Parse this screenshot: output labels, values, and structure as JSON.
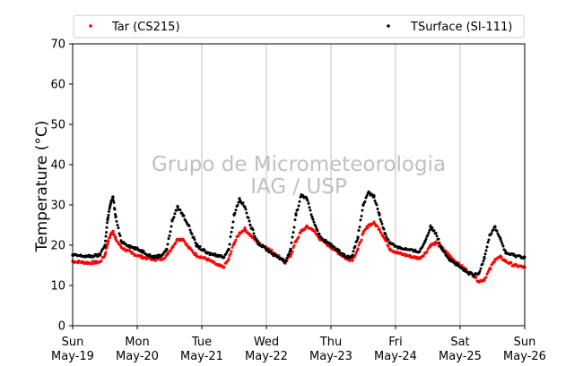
{
  "chart_data": {
    "type": "scatter",
    "ylabel": "Temperature (°C)",
    "ylim": [
      0,
      70
    ],
    "yticks": [
      0,
      10,
      20,
      30,
      40,
      50,
      60,
      70
    ],
    "xlim": [
      "2019-05-19",
      "2019-05-26"
    ],
    "xticks": [
      {
        "day": "Sun",
        "date": "May-19"
      },
      {
        "day": "Mon",
        "date": "May-20"
      },
      {
        "day": "Tue",
        "date": "May-21"
      },
      {
        "day": "Wed",
        "date": "May-22"
      },
      {
        "day": "Thu",
        "date": "May-23"
      },
      {
        "day": "Fri",
        "date": "May-24"
      },
      {
        "day": "Sat",
        "date": "May-25"
      },
      {
        "day": "Sun",
        "date": "May-26"
      }
    ],
    "grid": "vertical",
    "legend_position": "top",
    "watermark": [
      "Grupo de Micrometeorologia",
      "IAG / USP"
    ],
    "series": [
      {
        "name": "Tar (CS215)",
        "color": "#ff0000",
        "points": [
          [
            "2019-05-19 00:00",
            16.0
          ],
          [
            "2019-05-19 06:00",
            15.6
          ],
          [
            "2019-05-19 10:00",
            15.8
          ],
          [
            "2019-05-19 12:00",
            17.5
          ],
          [
            "2019-05-19 13:00",
            20.5
          ],
          [
            "2019-05-19 14:00",
            22.5
          ],
          [
            "2019-05-19 15:00",
            23.5
          ],
          [
            "2019-05-19 16:00",
            21.5
          ],
          [
            "2019-05-19 18:00",
            19.5
          ],
          [
            "2019-05-19 22:00",
            18.0
          ],
          [
            "2019-05-20 02:00",
            17.0
          ],
          [
            "2019-05-20 06:00",
            16.5
          ],
          [
            "2019-05-20 09:00",
            16.5
          ],
          [
            "2019-05-20 11:00",
            17.5
          ],
          [
            "2019-05-20 13:00",
            19.5
          ],
          [
            "2019-05-20 15:00",
            21.5
          ],
          [
            "2019-05-20 17:00",
            21.5
          ],
          [
            "2019-05-20 19:00",
            19.5
          ],
          [
            "2019-05-20 22:00",
            17.5
          ],
          [
            "2019-05-21 02:00",
            16.5
          ],
          [
            "2019-05-21 06:00",
            15.0
          ],
          [
            "2019-05-21 08:00",
            14.5
          ],
          [
            "2019-05-21 10:00",
            16.5
          ],
          [
            "2019-05-21 12:00",
            20.5
          ],
          [
            "2019-05-21 14:00",
            23.0
          ],
          [
            "2019-05-21 16:00",
            24.0
          ],
          [
            "2019-05-21 18:00",
            22.5
          ],
          [
            "2019-05-21 21:00",
            20.5
          ],
          [
            "2019-05-22 00:00",
            19.5
          ],
          [
            "2019-05-22 03:00",
            18.0
          ],
          [
            "2019-05-22 06:00",
            16.5
          ],
          [
            "2019-05-22 07:00",
            15.5
          ],
          [
            "2019-05-22 09:00",
            17.5
          ],
          [
            "2019-05-22 11:00",
            21.0
          ],
          [
            "2019-05-22 13:00",
            23.5
          ],
          [
            "2019-05-22 15:00",
            24.5
          ],
          [
            "2019-05-22 17:00",
            24.0
          ],
          [
            "2019-05-22 20:00",
            21.5
          ],
          [
            "2019-05-23 00:00",
            19.5
          ],
          [
            "2019-05-23 03:00",
            18.0
          ],
          [
            "2019-05-23 06:00",
            16.5
          ],
          [
            "2019-05-23 08:00",
            16.5
          ],
          [
            "2019-05-23 10:00",
            19.0
          ],
          [
            "2019-05-23 12:00",
            23.0
          ],
          [
            "2019-05-23 14:00",
            25.0
          ],
          [
            "2019-05-23 16:00",
            25.5
          ],
          [
            "2019-05-23 18:00",
            24.0
          ],
          [
            "2019-05-23 20:00",
            21.5
          ],
          [
            "2019-05-23 22:00",
            19.0
          ],
          [
            "2019-05-24 01:00",
            18.0
          ],
          [
            "2019-05-24 04:00",
            17.5
          ],
          [
            "2019-05-24 07:00",
            17.0
          ],
          [
            "2019-05-24 09:00",
            16.8
          ],
          [
            "2019-05-24 11:00",
            18.0
          ],
          [
            "2019-05-24 13:00",
            20.0
          ],
          [
            "2019-05-24 15:00",
            20.5
          ],
          [
            "2019-05-24 17:00",
            19.5
          ],
          [
            "2019-05-24 20:00",
            17.5
          ],
          [
            "2019-05-24 23:00",
            15.5
          ],
          [
            "2019-05-25 02:00",
            14.0
          ],
          [
            "2019-05-25 05:00",
            12.5
          ],
          [
            "2019-05-25 07:00",
            11.0
          ],
          [
            "2019-05-25 09:00",
            11.5
          ],
          [
            "2019-05-25 11:00",
            14.0
          ],
          [
            "2019-05-25 13:00",
            16.5
          ],
          [
            "2019-05-25 15:00",
            17.0
          ],
          [
            "2019-05-25 17:00",
            16.0
          ],
          [
            "2019-05-25 20:00",
            15.0
          ],
          [
            "2019-05-26 00:00",
            14.5
          ]
        ]
      },
      {
        "name": "TSurface (SI-111)",
        "color": "#000000",
        "points": [
          [
            "2019-05-19 00:00",
            17.5
          ],
          [
            "2019-05-19 06:00",
            17.2
          ],
          [
            "2019-05-19 10:00",
            17.5
          ],
          [
            "2019-05-19 12:00",
            20.0
          ],
          [
            "2019-05-19 13:00",
            26.5
          ],
          [
            "2019-05-19 14:00",
            30.0
          ],
          [
            "2019-05-19 15:00",
            32.0
          ],
          [
            "2019-05-19 16:00",
            27.0
          ],
          [
            "2019-05-19 18:00",
            21.0
          ],
          [
            "2019-05-19 22:00",
            19.5
          ],
          [
            "2019-05-20 02:00",
            18.5
          ],
          [
            "2019-05-20 06:00",
            17.0
          ],
          [
            "2019-05-20 09:00",
            17.5
          ],
          [
            "2019-05-20 11:00",
            19.0
          ],
          [
            "2019-05-20 13:00",
            26.0
          ],
          [
            "2019-05-20 15:00",
            29.5
          ],
          [
            "2019-05-20 17:00",
            27.5
          ],
          [
            "2019-05-20 19:00",
            25.0
          ],
          [
            "2019-05-20 22:00",
            20.0
          ],
          [
            "2019-05-21 02:00",
            18.0
          ],
          [
            "2019-05-21 06:00",
            17.5
          ],
          [
            "2019-05-21 08:00",
            17.0
          ],
          [
            "2019-05-21 10:00",
            19.0
          ],
          [
            "2019-05-21 12:00",
            27.5
          ],
          [
            "2019-05-21 14:00",
            31.5
          ],
          [
            "2019-05-21 16:00",
            29.5
          ],
          [
            "2019-05-21 18:00",
            25.0
          ],
          [
            "2019-05-21 21:00",
            20.5
          ],
          [
            "2019-05-22 00:00",
            19.0
          ],
          [
            "2019-05-22 03:00",
            17.5
          ],
          [
            "2019-05-22 06:00",
            16.5
          ],
          [
            "2019-05-22 07:00",
            15.8
          ],
          [
            "2019-05-22 09:00",
            19.0
          ],
          [
            "2019-05-22 11:00",
            27.5
          ],
          [
            "2019-05-22 13:00",
            32.5
          ],
          [
            "2019-05-22 15:00",
            31.5
          ],
          [
            "2019-05-22 17:00",
            27.0
          ],
          [
            "2019-05-22 20:00",
            22.0
          ],
          [
            "2019-05-23 00:00",
            20.0
          ],
          [
            "2019-05-23 03:00",
            18.5
          ],
          [
            "2019-05-23 06:00",
            17.0
          ],
          [
            "2019-05-23 08:00",
            17.5
          ],
          [
            "2019-05-23 10:00",
            22.0
          ],
          [
            "2019-05-23 12:00",
            30.0
          ],
          [
            "2019-05-23 14:00",
            33.0
          ],
          [
            "2019-05-23 16:00",
            32.0
          ],
          [
            "2019-05-23 18:00",
            27.5
          ],
          [
            "2019-05-23 20:00",
            23.0
          ],
          [
            "2019-05-23 22:00",
            20.5
          ],
          [
            "2019-05-24 01:00",
            19.5
          ],
          [
            "2019-05-24 04:00",
            19.0
          ],
          [
            "2019-05-24 07:00",
            18.5
          ],
          [
            "2019-05-24 09:00",
            18.5
          ],
          [
            "2019-05-24 11:00",
            21.0
          ],
          [
            "2019-05-24 13:00",
            24.5
          ],
          [
            "2019-05-24 15:00",
            23.0
          ],
          [
            "2019-05-24 17:00",
            19.5
          ],
          [
            "2019-05-24 20:00",
            16.5
          ],
          [
            "2019-05-24 23:00",
            15.0
          ],
          [
            "2019-05-25 02:00",
            13.5
          ],
          [
            "2019-05-25 05:00",
            12.5
          ],
          [
            "2019-05-25 07:00",
            13.0
          ],
          [
            "2019-05-25 09:00",
            17.0
          ],
          [
            "2019-05-25 11:00",
            22.5
          ],
          [
            "2019-05-25 13:00",
            24.5
          ],
          [
            "2019-05-25 15:00",
            21.5
          ],
          [
            "2019-05-25 17:00",
            18.0
          ],
          [
            "2019-05-25 20:00",
            17.5
          ],
          [
            "2019-05-26 00:00",
            17.0
          ]
        ]
      }
    ]
  }
}
